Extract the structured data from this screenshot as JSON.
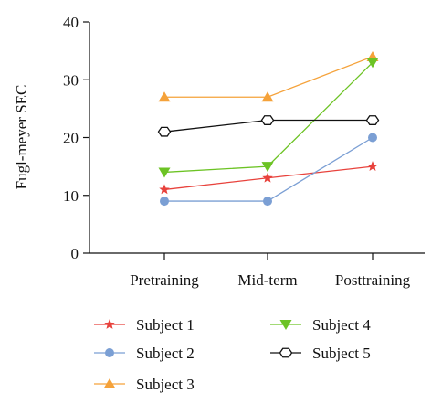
{
  "chart_data": {
    "type": "line",
    "ylabel": "Fugl-meyer SEC",
    "xlabel": "",
    "categories": [
      "Pretraining",
      "Mid-term",
      "Posttraining"
    ],
    "ylim": [
      0,
      40
    ],
    "yticks": [
      0,
      10,
      20,
      30,
      40
    ],
    "grid": false,
    "legend_position": "bottom",
    "series": [
      {
        "name": "Subject 1",
        "values": [
          11,
          13,
          15
        ],
        "color": "#e8423c",
        "marker": "star"
      },
      {
        "name": "Subject 2",
        "values": [
          9,
          9,
          20
        ],
        "color": "#7b9fd4",
        "marker": "circle"
      },
      {
        "name": "Subject 3",
        "values": [
          27,
          27,
          34
        ],
        "color": "#f5a23a",
        "marker": "triangle-up"
      },
      {
        "name": "Subject 4",
        "values": [
          14,
          15,
          33
        ],
        "color": "#6cc324",
        "marker": "triangle-down"
      },
      {
        "name": "Subject 5",
        "values": [
          21,
          23,
          23
        ],
        "color": "#111111",
        "marker": "hexagon-open"
      }
    ]
  }
}
